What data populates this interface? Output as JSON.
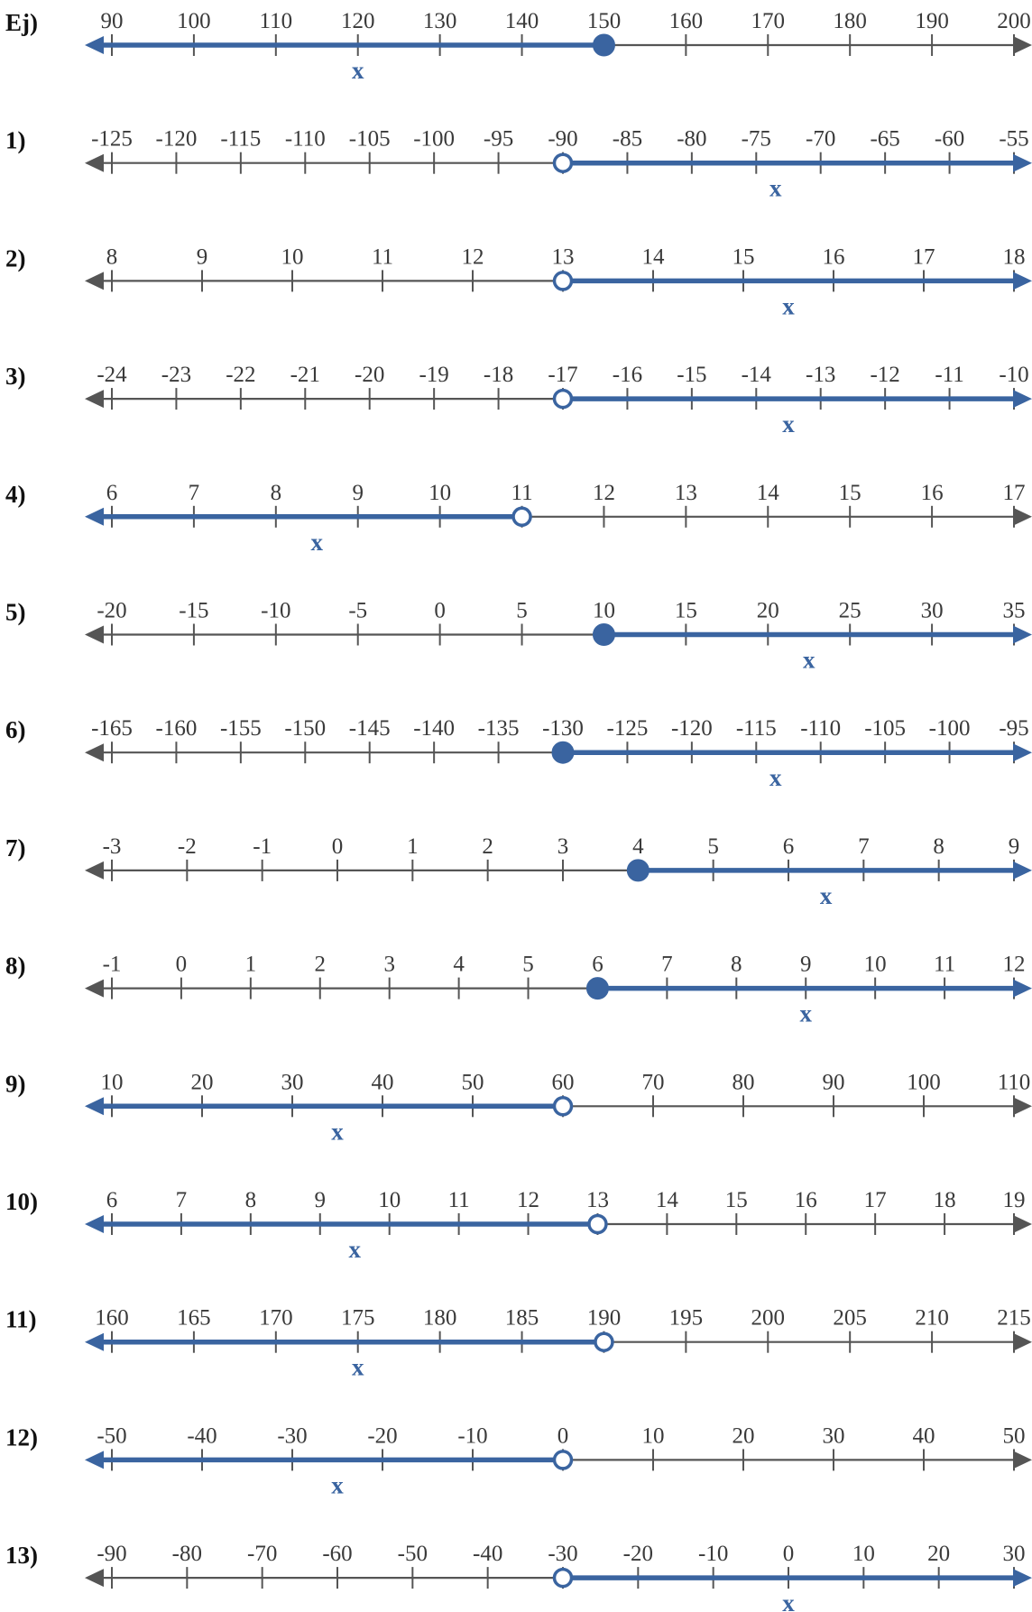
{
  "colors": {
    "axis": "#555555",
    "highlight": "#3a64a0",
    "label": "#111111",
    "tick_text": "#3a3a3a"
  },
  "number_lines": [
    {
      "label": "Ej)",
      "ticks": [
        "90",
        "100",
        "110",
        "120",
        "130",
        "140",
        "150",
        "160",
        "170",
        "180",
        "190",
        "200"
      ],
      "start": 90,
      "step": 10,
      "endpoint": 150,
      "closed": true,
      "direction": "left",
      "variable": "x",
      "var_at": 120
    },
    {
      "label": "1)",
      "ticks": [
        "-125",
        "-120",
        "-115",
        "-110",
        "-105",
        "-100",
        "-95",
        "-90",
        "-85",
        "-80",
        "-75",
        "-70",
        "-65",
        "-60",
        "-55"
      ],
      "start": -125,
      "step": 5,
      "endpoint": -90,
      "closed": false,
      "direction": "right",
      "variable": "x",
      "var_at": -73.5
    },
    {
      "label": "2)",
      "ticks": [
        "8",
        "9",
        "10",
        "11",
        "12",
        "13",
        "14",
        "15",
        "16",
        "17",
        "18"
      ],
      "start": 8,
      "step": 1,
      "endpoint": 13,
      "closed": false,
      "direction": "right",
      "variable": "x",
      "var_at": 15.5
    },
    {
      "label": "3)",
      "ticks": [
        "-24",
        "-23",
        "-22",
        "-21",
        "-20",
        "-19",
        "-18",
        "-17",
        "-16",
        "-15",
        "-14",
        "-13",
        "-12",
        "-11",
        "-10"
      ],
      "start": -24,
      "step": 1,
      "endpoint": -17,
      "closed": false,
      "direction": "right",
      "variable": "x",
      "var_at": -13.5
    },
    {
      "label": "4)",
      "ticks": [
        "6",
        "7",
        "8",
        "9",
        "10",
        "11",
        "12",
        "13",
        "14",
        "15",
        "16",
        "17"
      ],
      "start": 6,
      "step": 1,
      "endpoint": 11,
      "closed": false,
      "direction": "left",
      "variable": "x",
      "var_at": 8.5
    },
    {
      "label": "5)",
      "ticks": [
        "-20",
        "-15",
        "-10",
        "-5",
        "0",
        "5",
        "10",
        "15",
        "20",
        "25",
        "30",
        "35"
      ],
      "start": -20,
      "step": 5,
      "endpoint": 10,
      "closed": true,
      "direction": "right",
      "variable": "x",
      "var_at": 22.5
    },
    {
      "label": "6)",
      "ticks": [
        "-165",
        "-160",
        "-155",
        "-150",
        "-145",
        "-140",
        "-135",
        "-130",
        "-125",
        "-120",
        "-115",
        "-110",
        "-105",
        "-100",
        "-95"
      ],
      "start": -165,
      "step": 5,
      "endpoint": -130,
      "closed": true,
      "direction": "right",
      "variable": "x",
      "var_at": -113.5
    },
    {
      "label": "7)",
      "ticks": [
        "-3",
        "-2",
        "-1",
        "0",
        "1",
        "2",
        "3",
        "4",
        "5",
        "6",
        "7",
        "8",
        "9"
      ],
      "start": -3,
      "step": 1,
      "endpoint": 4,
      "closed": true,
      "direction": "right",
      "variable": "x",
      "var_at": 6.5
    },
    {
      "label": "8)",
      "ticks": [
        "-1",
        "0",
        "1",
        "2",
        "3",
        "4",
        "5",
        "6",
        "7",
        "8",
        "9",
        "10",
        "11",
        "12"
      ],
      "start": -1,
      "step": 1,
      "endpoint": 6,
      "closed": true,
      "direction": "right",
      "variable": "x",
      "var_at": 9
    },
    {
      "label": "9)",
      "ticks": [
        "10",
        "20",
        "30",
        "40",
        "50",
        "60",
        "70",
        "80",
        "90",
        "100",
        "110"
      ],
      "start": 10,
      "step": 10,
      "endpoint": 60,
      "closed": false,
      "direction": "left",
      "variable": "x",
      "var_at": 35
    },
    {
      "label": "10)",
      "ticks": [
        "6",
        "7",
        "8",
        "9",
        "10",
        "11",
        "12",
        "13",
        "14",
        "15",
        "16",
        "17",
        "18",
        "19"
      ],
      "start": 6,
      "step": 1,
      "endpoint": 13,
      "closed": false,
      "direction": "left",
      "variable": "x",
      "var_at": 9.5
    },
    {
      "label": "11)",
      "ticks": [
        "160",
        "165",
        "170",
        "175",
        "180",
        "185",
        "190",
        "195",
        "200",
        "205",
        "210",
        "215"
      ],
      "start": 160,
      "step": 5,
      "endpoint": 190,
      "closed": false,
      "direction": "left",
      "variable": "x",
      "var_at": 175
    },
    {
      "label": "12)",
      "ticks": [
        "-50",
        "-40",
        "-30",
        "-20",
        "-10",
        "0",
        "10",
        "20",
        "30",
        "40",
        "50"
      ],
      "start": -50,
      "step": 10,
      "endpoint": 0,
      "closed": false,
      "direction": "left",
      "variable": "x",
      "var_at": -25
    },
    {
      "label": "13)",
      "ticks": [
        "-90",
        "-80",
        "-70",
        "-60",
        "-50",
        "-40",
        "-30",
        "-20",
        "-10",
        "0",
        "10",
        "20",
        "30"
      ],
      "start": -90,
      "step": 10,
      "endpoint": -30,
      "closed": false,
      "direction": "right",
      "variable": "x",
      "var_at": 0
    }
  ]
}
